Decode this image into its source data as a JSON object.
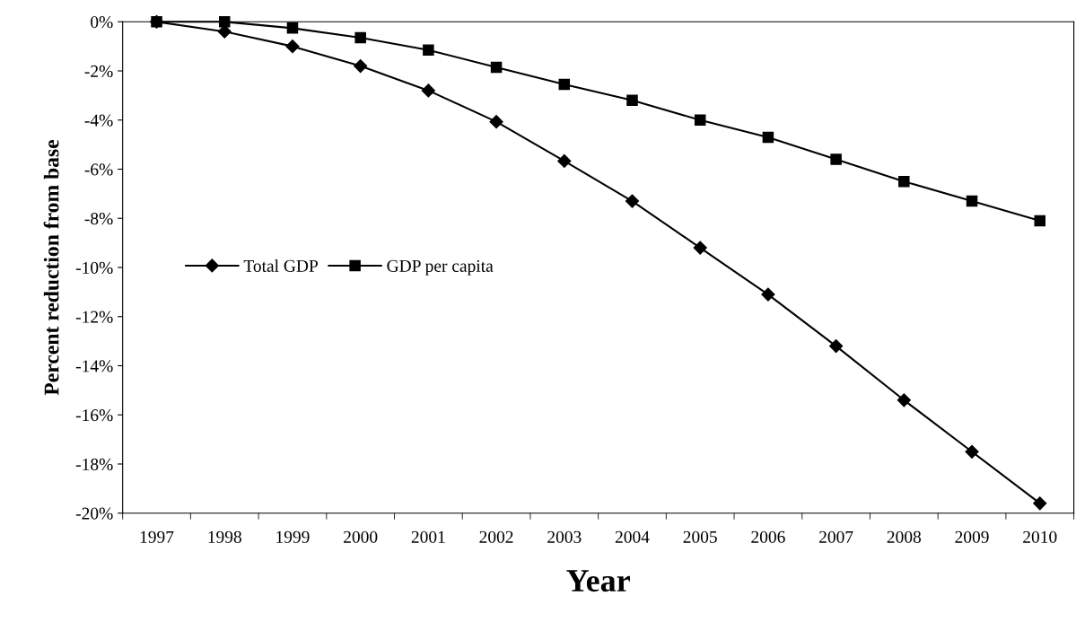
{
  "chart_data": {
    "type": "line",
    "xlabel": "Year",
    "ylabel": "Percent reduction from base",
    "categories": [
      "1997",
      "1998",
      "1999",
      "2000",
      "2001",
      "2002",
      "2003",
      "2004",
      "2005",
      "2006",
      "2007",
      "2008",
      "2009",
      "2010"
    ],
    "series": [
      {
        "name": "Total GDP",
        "color": "#000000",
        "marker": "diamond",
        "values": [
          0,
          -0.4,
          -1.0,
          -1.8,
          -2.8,
          -4.07,
          -5.67,
          -7.3,
          -9.2,
          -11.1,
          -13.2,
          -15.4,
          -17.5,
          -19.6
        ]
      },
      {
        "name": "GDP per capita",
        "color": "#000000",
        "marker": "square",
        "values": [
          0,
          0,
          -0.26,
          -0.65,
          -1.15,
          -1.85,
          -2.55,
          -3.2,
          -4.0,
          -4.7,
          -5.6,
          -6.5,
          -7.3,
          -8.1
        ]
      }
    ],
    "ylim": [
      -20,
      0
    ],
    "yticks": [
      {
        "value": 0,
        "label": "0%"
      },
      {
        "value": -2,
        "label": "-2%"
      },
      {
        "value": -4,
        "label": "-4%"
      },
      {
        "value": -6,
        "label": "-6%"
      },
      {
        "value": -8,
        "label": "-8%"
      },
      {
        "value": -10,
        "label": "-10%"
      },
      {
        "value": -12,
        "label": "-12%"
      },
      {
        "value": -14,
        "label": "-14%"
      },
      {
        "value": -16,
        "label": "-16%"
      },
      {
        "value": -18,
        "label": "-18%"
      },
      {
        "value": -20,
        "label": "-20%"
      }
    ],
    "grid": false,
    "legend": "left",
    "line_style": "solid"
  }
}
